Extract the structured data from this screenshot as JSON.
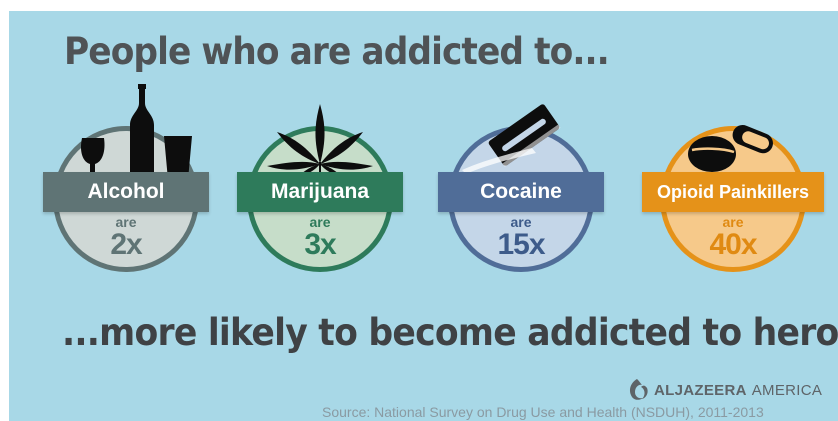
{
  "headline": "People who are addicted to...",
  "footer": "...more likely to become addicted to heroin.",
  "colors": {
    "background": "#a8d8e7",
    "alcohol": "#5f7475",
    "marijuana": "#2e7b5b",
    "cocaine": "#506d98",
    "opioid": "#e59219"
  },
  "badges": [
    {
      "label": "Alcohol",
      "are": "are",
      "multiplier": "2x",
      "icon": "bottle-and-glasses-icon"
    },
    {
      "label": "Marijuana",
      "are": "are",
      "multiplier": "3x",
      "icon": "cannabis-leaf-icon"
    },
    {
      "label": "Cocaine",
      "are": "are",
      "multiplier": "15x",
      "icon": "razor-blade-icon"
    },
    {
      "label": "Opioid Painkillers",
      "are": "are",
      "multiplier": "40x",
      "icon": "pills-icon"
    }
  ],
  "brand": {
    "name": "ALJAZEERA",
    "sub": "AMERICA",
    "icon": "aljazeera-logo-icon"
  },
  "source": "Source: National Survey on Drug Use and Health (NSDUH), 2011-2013"
}
